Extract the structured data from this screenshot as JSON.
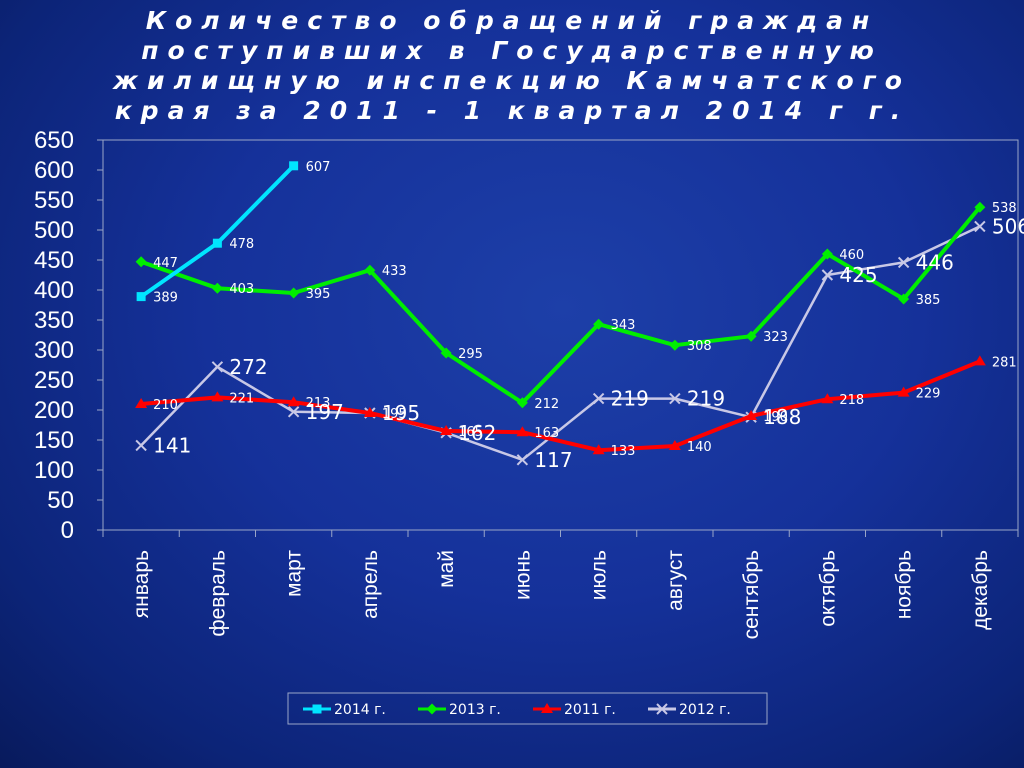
{
  "chart_data": {
    "type": "line",
    "title": "Количество обращений граждан поступивших в Государственную жилищную инспекцию Камчатского края за 2011 - 1 квартал 2014 г г.",
    "categories": [
      "январь",
      "февраль",
      "март",
      "апрель",
      "май",
      "июнь",
      "июль",
      "август",
      "сентябрь",
      "октябрь",
      "ноябрь",
      "декабрь"
    ],
    "ylim": [
      0,
      650
    ],
    "yticks": [
      "0",
      "50",
      "100",
      "150",
      "200",
      "250",
      "300",
      "350",
      "400",
      "450",
      "500",
      "550",
      "600",
      "650"
    ],
    "grid": false,
    "legend": "bottom",
    "series": [
      {
        "name": "2014 г.",
        "color": "#00e5ff",
        "marker": "square",
        "label_size": "small",
        "values": [
          389,
          478,
          607,
          null,
          null,
          null,
          null,
          null,
          null,
          null,
          null,
          null
        ]
      },
      {
        "name": "2013 г.",
        "color": "#00ee00",
        "marker": "diamond",
        "label_size": "small",
        "values": [
          447,
          403,
          395,
          433,
          295,
          212,
          343,
          308,
          323,
          460,
          385,
          538
        ]
      },
      {
        "name": "2011 г.",
        "color": "#ff0000",
        "marker": "triangle",
        "label_size": "small",
        "values": [
          210,
          221,
          213,
          195,
          165,
          163,
          133,
          140,
          190,
          218,
          229,
          281
        ]
      },
      {
        "name": "2012 г.",
        "color": "#c8c8e6",
        "marker": "x",
        "label_size": "big",
        "values": [
          141,
          272,
          197,
          195,
          162,
          117,
          219,
          219,
          188,
          425,
          446,
          506
        ]
      }
    ]
  }
}
